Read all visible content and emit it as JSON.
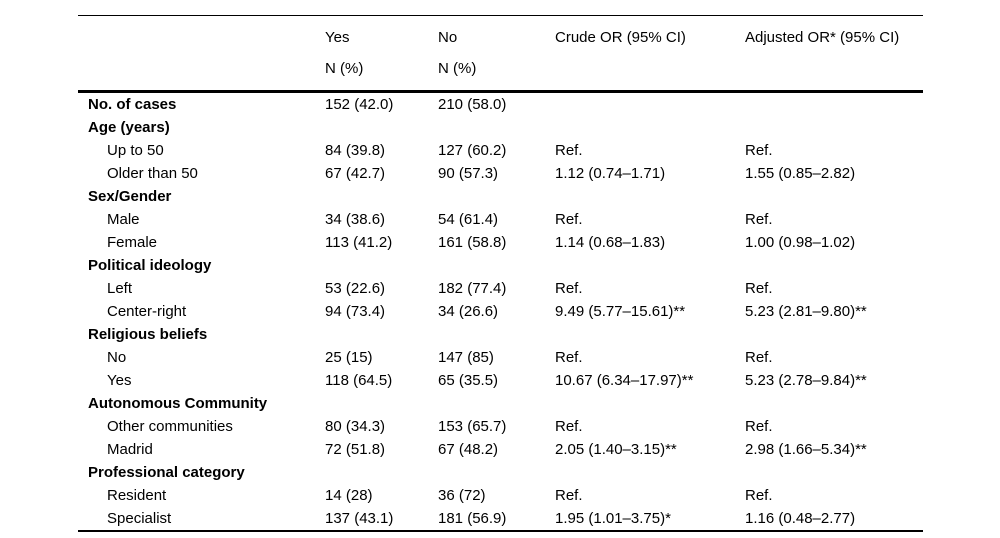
{
  "colors": {
    "background": "#ffffff",
    "text": "#000000",
    "rule": "#000000"
  },
  "table": {
    "columns": [
      {
        "label": "",
        "sublabel": ""
      },
      {
        "label": "Yes",
        "sublabel": "N (%)"
      },
      {
        "label": "No",
        "sublabel": "N (%)"
      },
      {
        "label": "Crude OR (95% CI)",
        "sublabel": ""
      },
      {
        "label": "Adjusted OR* (95% CI)",
        "sublabel": ""
      }
    ],
    "rows": [
      {
        "type": "bold-data",
        "label": "No. of cases",
        "yes": "152 (42.0)",
        "no": "210 (58.0)",
        "crude": "",
        "adjusted": ""
      },
      {
        "type": "section",
        "label": "Age (years)",
        "yes": "",
        "no": "",
        "crude": "",
        "adjusted": ""
      },
      {
        "type": "data",
        "label": "Up to 50",
        "yes": "84 (39.8)",
        "no": "127 (60.2)",
        "crude": "Ref.",
        "adjusted": "Ref."
      },
      {
        "type": "data",
        "label": "Older than 50",
        "yes": "67 (42.7)",
        "no": "90 (57.3)",
        "crude": "1.12 (0.74–1.71)",
        "adjusted": "1.55 (0.85–2.82)"
      },
      {
        "type": "section",
        "label": "Sex/Gender",
        "yes": "",
        "no": "",
        "crude": "",
        "adjusted": ""
      },
      {
        "type": "data",
        "label": "Male",
        "yes": "34 (38.6)",
        "no": "54 (61.4)",
        "crude": "Ref.",
        "adjusted": "Ref."
      },
      {
        "type": "data",
        "label": "Female",
        "yes": "113 (41.2)",
        "no": "161 (58.8)",
        "crude": "1.14 (0.68–1.83)",
        "adjusted": "1.00 (0.98–1.02)"
      },
      {
        "type": "section",
        "label": "Political ideology",
        "yes": "",
        "no": "",
        "crude": "",
        "adjusted": ""
      },
      {
        "type": "data",
        "label": "Left",
        "yes": "53 (22.6)",
        "no": "182 (77.4)",
        "crude": "Ref.",
        "adjusted": "Ref."
      },
      {
        "type": "data",
        "label": "Center-right",
        "yes": "94 (73.4)",
        "no": "34 (26.6)",
        "crude": "9.49 (5.77–15.61)**",
        "adjusted": "5.23 (2.81–9.80)**"
      },
      {
        "type": "section",
        "label": "Religious beliefs",
        "yes": "",
        "no": "",
        "crude": "",
        "adjusted": ""
      },
      {
        "type": "data",
        "label": "No",
        "yes": "25 (15)",
        "no": "147 (85)",
        "crude": "Ref.",
        "adjusted": "Ref."
      },
      {
        "type": "data",
        "label": "Yes",
        "yes": "118 (64.5)",
        "no": "65 (35.5)",
        "crude": "10.67 (6.34–17.97)**",
        "adjusted": "5.23 (2.78–9.84)**"
      },
      {
        "type": "section",
        "label": "Autonomous Community",
        "yes": "",
        "no": "",
        "crude": "",
        "adjusted": ""
      },
      {
        "type": "data",
        "label": "Other communities",
        "yes": "80 (34.3)",
        "no": "153 (65.7)",
        "crude": "Ref.",
        "adjusted": "Ref."
      },
      {
        "type": "data",
        "label": "Madrid",
        "yes": "72 (51.8)",
        "no": "67 (48.2)",
        "crude": "2.05 (1.40–3.15)**",
        "adjusted": "2.98 (1.66–5.34)**"
      },
      {
        "type": "section",
        "label": "Professional category",
        "yes": "",
        "no": "",
        "crude": "",
        "adjusted": ""
      },
      {
        "type": "data",
        "label": "Resident",
        "yes": "14 (28)",
        "no": "36 (72)",
        "crude": "Ref.",
        "adjusted": "Ref."
      },
      {
        "type": "data",
        "label": "Specialist",
        "yes": "137 (43.1)",
        "no": "181 (56.9)",
        "crude": "1.95 (1.01–3.75)*",
        "adjusted": "1.16 (0.48–2.77)"
      }
    ]
  }
}
